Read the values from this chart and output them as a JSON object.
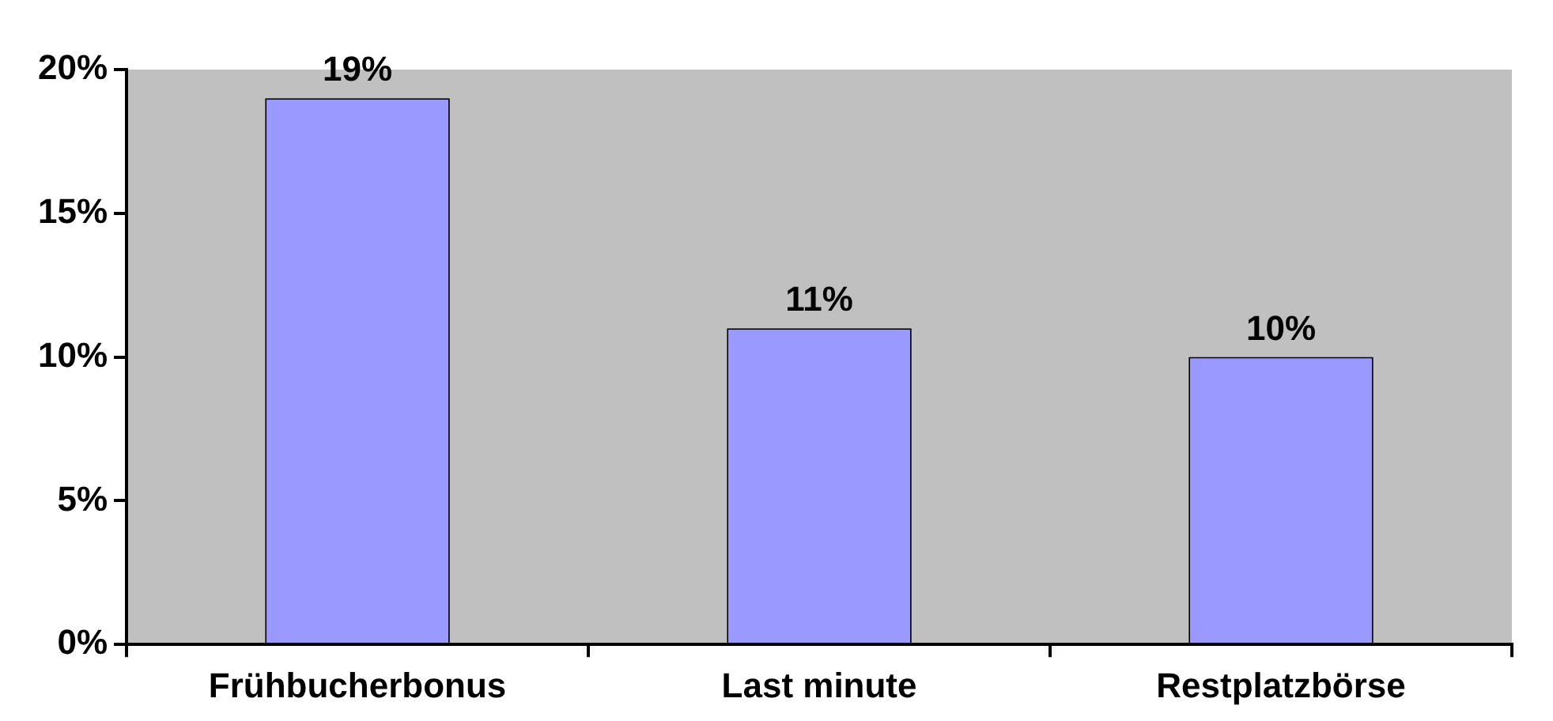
{
  "chart_data": {
    "type": "bar",
    "categories": [
      "Frühbucherbonus",
      "Last minute",
      "Restplatzbörse"
    ],
    "values": [
      19,
      11,
      10
    ],
    "color": "#9999ff",
    "value_labels": [
      "19%",
      "11%",
      "10%"
    ],
    "ylim": [
      0,
      20
    ],
    "yticks": [
      {
        "value": 0,
        "label": "0%"
      },
      {
        "value": 5,
        "label": "5%"
      },
      {
        "value": 10,
        "label": "10%"
      },
      {
        "value": 15,
        "label": "15%"
      },
      {
        "value": 20,
        "label": "20%"
      }
    ]
  }
}
